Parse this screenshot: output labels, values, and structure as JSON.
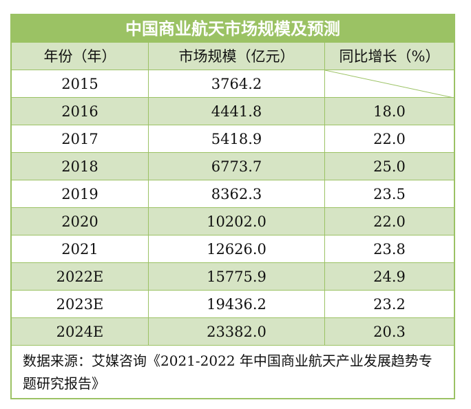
{
  "chart_data": {
    "type": "table",
    "title": "中国商业航天市场规模及预测",
    "columns": [
      "年份（年）",
      "市场规模（亿元）",
      "同比增长（%）"
    ],
    "rows": [
      [
        "2015",
        "3764.2",
        ""
      ],
      [
        "2016",
        "4441.8",
        "18.0"
      ],
      [
        "2017",
        "5418.9",
        "22.0"
      ],
      [
        "2018",
        "6773.7",
        "25.0"
      ],
      [
        "2019",
        "8362.3",
        "23.5"
      ],
      [
        "2020",
        "10202.0",
        "22.0"
      ],
      [
        "2021",
        "12626.0",
        "23.8"
      ],
      [
        "2022E",
        "15775.9",
        "24.9"
      ],
      [
        "2023E",
        "19436.2",
        "23.2"
      ],
      [
        "2024E",
        "23382.0",
        "20.3"
      ]
    ],
    "source": "数据来源：艾媒咨询《2021-2022 年中国商业航天产业发展趋势专题研究报告》"
  },
  "colors": {
    "header_green": "#9bc264",
    "row_green": "#d6e4c4",
    "border": "#9bc264"
  }
}
